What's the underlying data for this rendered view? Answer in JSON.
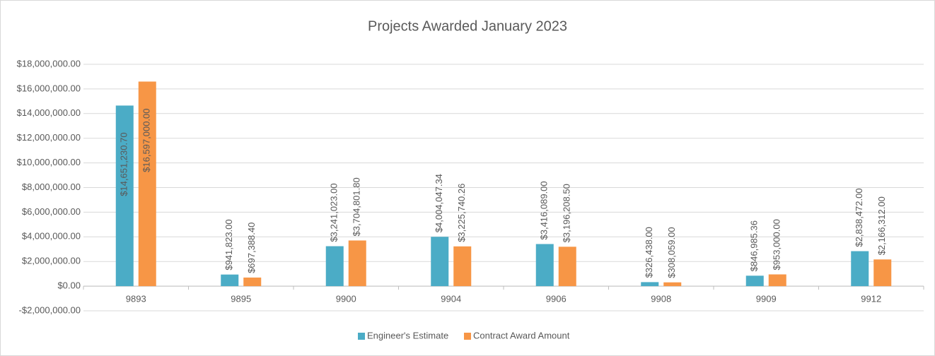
{
  "chart_data": {
    "type": "bar",
    "title": "Projects Awarded January 2023",
    "categories": [
      "9893",
      "9895",
      "9900",
      "9904",
      "9906",
      "9908",
      "9909",
      "9912"
    ],
    "series": [
      {
        "name": "Engineer's Estimate",
        "color": "#4bacc6",
        "values": [
          14651230.7,
          941823.0,
          3241023.0,
          4004047.34,
          3416089.0,
          326438.0,
          846985.36,
          2838472.0
        ],
        "value_labels": [
          "$14,651,230.70",
          "$941,823.00",
          "$3,241,023.00",
          "$4,004,047.34",
          "$3,416,089.00",
          "$326,438.00",
          "$846,985.36",
          "$2,838,472.00"
        ]
      },
      {
        "name": "Contract Award Amount",
        "color": "#f79646",
        "values": [
          16597000.0,
          697388.4,
          3704801.8,
          3225740.26,
          3196208.5,
          308059.0,
          953000.0,
          2166312.0
        ],
        "value_labels": [
          "$16,597,000.00",
          "$697,388.40",
          "$3,704,801.80",
          "$3,225,740.26",
          "$3,196,208.50",
          "$308,059.00",
          "$953,000.00",
          "$2,166,312.00"
        ]
      }
    ],
    "ylim": [
      -2000000,
      18000000
    ],
    "yticks": [
      {
        "value": -2000000,
        "label": "-$2,000,000.00"
      },
      {
        "value": 0,
        "label": "$0.00"
      },
      {
        "value": 2000000,
        "label": "$2,000,000.00"
      },
      {
        "value": 4000000,
        "label": "$4,000,000.00"
      },
      {
        "value": 6000000,
        "label": "$6,000,000.00"
      },
      {
        "value": 8000000,
        "label": "$8,000,000.00"
      },
      {
        "value": 10000000,
        "label": "$10,000,000.00"
      },
      {
        "value": 12000000,
        "label": "$12,000,000.00"
      },
      {
        "value": 14000000,
        "label": "$14,000,000.00"
      },
      {
        "value": 16000000,
        "label": "$16,000,000.00"
      },
      {
        "value": 18000000,
        "label": "$18,000,000.00"
      }
    ],
    "grid": true,
    "legend": "bottom"
  }
}
